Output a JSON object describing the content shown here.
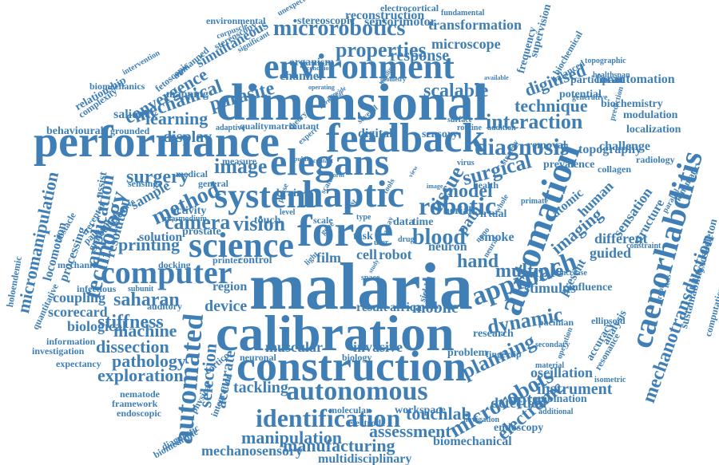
{
  "color": "#3f7fb5",
  "words": [
    "malaria",
    "calibration",
    "dimensional",
    "construction",
    "performance",
    "feedback",
    "force",
    "haptic",
    "system",
    "elegans",
    "automation",
    "environment",
    "science",
    "computer",
    "caenorhabditis",
    "automated",
    "autonomous",
    "identification",
    "technology",
    "microrobotics",
    "properties",
    "diagnosis",
    "robotic",
    "approach",
    "blood",
    "image",
    "microrobots",
    "surgical",
    "interaction",
    "camera",
    "vision",
    "method",
    "multiple",
    "planning",
    "dynamic",
    "mechanotransduction",
    "opto",
    "electronic",
    "saharan",
    "stiffness",
    "mechanical",
    "convergence",
    "parasite",
    "learning",
    "display",
    "transformation",
    "microscope",
    "reconstruction",
    "stereoscopic",
    "sensorimotor",
    "simultaneous",
    "scalable",
    "technique",
    "digitised",
    "hand",
    "model",
    "surgery",
    "imaging",
    "tissue",
    "manipulation",
    "manufacturing",
    "assessment",
    "mechanosensory",
    "multidisciplinary",
    "biomechanical",
    "touchlab",
    "instrument",
    "detection",
    "combination",
    "oscillation",
    "endoscopy",
    "pathology",
    "exploration",
    "machine",
    "dissection",
    "biological",
    "scorecard",
    "coupling",
    "printing",
    "selection",
    "accurate",
    "tackling",
    "muscular",
    "invasive",
    "result",
    "africa",
    "mobile",
    "research",
    "cell",
    "robot",
    "film",
    "device",
    "region",
    "solution",
    "prostate",
    "control",
    "printer",
    "application",
    "micromanipulation",
    "locomotion",
    "processing",
    "resolution",
    "sample",
    "sensation",
    "structure",
    "human",
    "atomic",
    "guided",
    "different",
    "present",
    "influence",
    "stimulus",
    "topography",
    "challenge",
    "radiology",
    "biochemistry",
    "modulation",
    "localization",
    "participant",
    "potential",
    "frequency",
    "supervision",
    "biomechanics",
    "relationship",
    "complexity",
    "saliency",
    "mapping",
    "behavioural",
    "grounded",
    "response",
    "channel",
    "organism",
    "neuron",
    "smoke",
    "virtual",
    "aerial",
    "sensory",
    "digital",
    "removal",
    "prevalence",
    "collagen",
    "path",
    "health",
    "task",
    "time",
    "data",
    "brain",
    "touch",
    "scale",
    "field",
    "sickle",
    "nematode",
    "framework",
    "endoscopic",
    "expectancy",
    "investigation",
    "information",
    "auditory",
    "quantitative",
    "stereoscopy",
    "environmental",
    "unexpected",
    "electrocortical",
    "fundamental",
    "fetoscopic",
    "unmanned",
    "corpuscle",
    "significant",
    "intervention",
    "forautomation",
    "balanced",
    "biochemical",
    "topographic",
    "healthspan",
    "generative",
    "prediction",
    "sustainability",
    "exoskeleton",
    "computational",
    "accuracy",
    "analysis",
    "resonance",
    "isometric",
    "ellipsoid",
    "pacinian",
    "increase",
    "constraint",
    "kinematic",
    "parallel",
    "lens",
    "proof",
    "neuronal",
    "biology",
    "problem",
    "fingertip",
    "workspace",
    "molecular",
    "electrode",
    "navigation",
    "additional",
    "material",
    "operation",
    "secondary",
    "cortico",
    "integration",
    "physical",
    "diagnostic",
    "biomedicine",
    "cuticle",
    "pain",
    "receptor",
    "gradient",
    "infectious",
    "subunit",
    "mechanic",
    "docking",
    "activity",
    "plasmodium",
    "capacitive",
    "surface",
    "theory",
    "quality",
    "matrix",
    "mutant",
    "adaptive",
    "several",
    "expert",
    "routine",
    "addition",
    "strategy",
    "general",
    "measure",
    "medical",
    "sensing",
    "assist",
    "virus",
    "holoendemic",
    "obstacle"
  ],
  "misc": [
    "particular",
    "condition",
    "geometry",
    "operating",
    "provide",
    "building",
    "available",
    "public",
    "contact",
    "study",
    "user",
    "light",
    "level",
    "scale",
    "type",
    "phase",
    "space",
    "assay",
    "cost",
    "gene",
    "drug",
    "tools",
    "nano",
    "neural",
    "whole",
    "primate",
    "image",
    "form",
    "view"
  ]
}
